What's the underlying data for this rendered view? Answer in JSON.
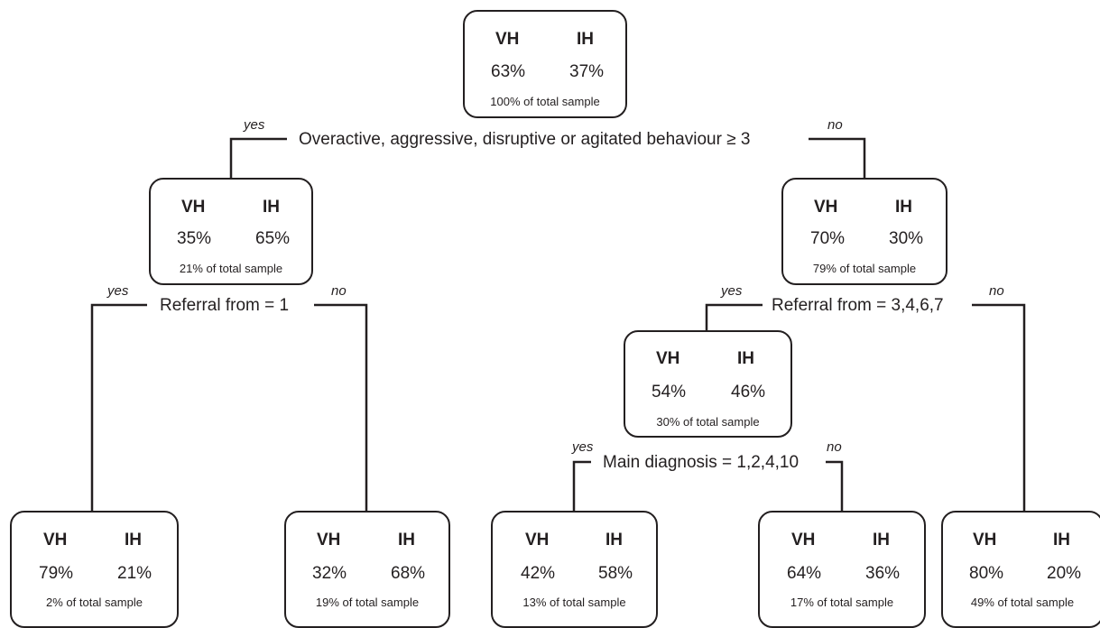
{
  "nodes": [
    {
      "id": "root",
      "h1": "VH",
      "h2": "IH",
      "p1": "63%",
      "p2": "37%",
      "sample": "100% of total sample"
    },
    {
      "id": "l1",
      "h1": "VH",
      "h2": "IH",
      "p1": "35%",
      "p2": "65%",
      "sample": "21% of total sample"
    },
    {
      "id": "r1",
      "h1": "VH",
      "h2": "IH",
      "p1": "70%",
      "p2": "30%",
      "sample": "79% of total sample"
    },
    {
      "id": "r2",
      "h1": "VH",
      "h2": "IH",
      "p1": "54%",
      "p2": "46%",
      "sample": "30% of total sample"
    },
    {
      "id": "leaf1",
      "h1": "VH",
      "h2": "IH",
      "p1": "79%",
      "p2": "21%",
      "sample": "2% of total sample"
    },
    {
      "id": "leaf2",
      "h1": "VH",
      "h2": "IH",
      "p1": "32%",
      "p2": "68%",
      "sample": "19% of total sample"
    },
    {
      "id": "leaf3",
      "h1": "VH",
      "h2": "IH",
      "p1": "42%",
      "p2": "58%",
      "sample": "13% of total sample"
    },
    {
      "id": "leaf4",
      "h1": "VH",
      "h2": "IH",
      "p1": "64%",
      "p2": "36%",
      "sample": "17% of total sample"
    },
    {
      "id": "leaf5",
      "h1": "VH",
      "h2": "IH",
      "p1": "80%",
      "p2": "20%",
      "sample": "49% of total sample"
    }
  ],
  "splits": [
    {
      "id": "s-root",
      "label": "Overactive, aggressive, disruptive or agitated behaviour ≥ 3",
      "yes": "yes",
      "no": "no"
    },
    {
      "id": "s-left",
      "label": "Referral from = 1",
      "yes": "yes",
      "no": "no"
    },
    {
      "id": "s-right",
      "label": "Referral from = 3,4,6,7",
      "yes": "yes",
      "no": "no"
    },
    {
      "id": "s-diag",
      "label": "Main diagnosis = 1,2,4,10",
      "yes": "yes",
      "no": "no"
    }
  ]
}
